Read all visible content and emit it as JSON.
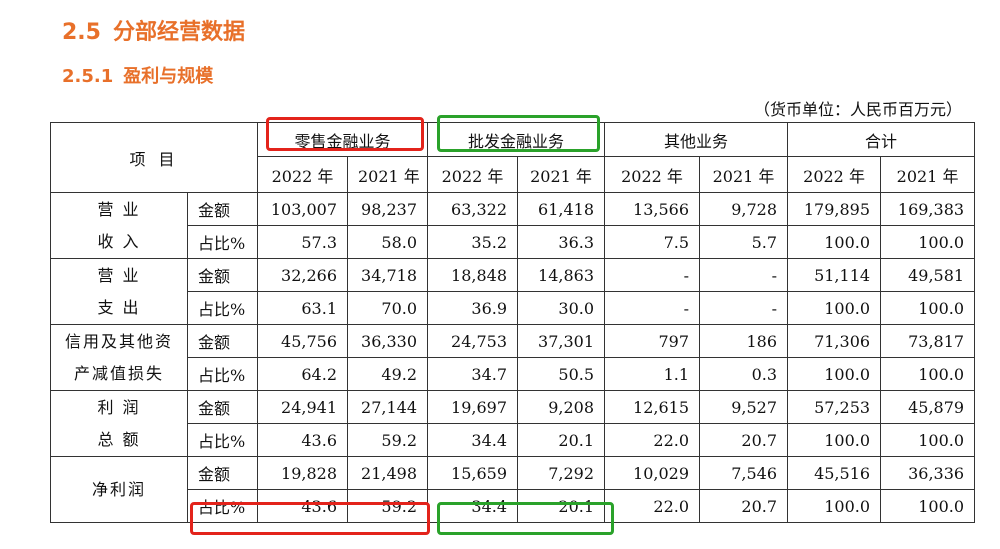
{
  "heading": {
    "num": "2.5",
    "text": "分部经营数据"
  },
  "subheading": {
    "num": "2.5.1",
    "text": "盈利与规模"
  },
  "unit_note": "（货币单位：人民币百万元）",
  "table": {
    "item_header": "项  目",
    "segments": [
      "零售金融业务",
      "批发金融业务",
      "其他业务",
      "合计"
    ],
    "years": [
      "2022 年",
      "2021 年",
      "2022 年",
      "2021 年",
      "2022 年",
      "2021 年",
      "2022 年",
      "2021 年"
    ],
    "rows": [
      {
        "item": [
          "营  业",
          "收  入"
        ],
        "amount": {
          "label": "金额",
          "values": [
            "103,007",
            "98,237",
            "63,322",
            "61,418",
            "13,566",
            "9,728",
            "179,895",
            "169,383"
          ]
        },
        "share": {
          "label": "占比%",
          "values": [
            "57.3",
            "58.0",
            "35.2",
            "36.3",
            "7.5",
            "5.7",
            "100.0",
            "100.0"
          ]
        }
      },
      {
        "item": [
          "营  业",
          "支  出"
        ],
        "amount": {
          "label": "金额",
          "values": [
            "32,266",
            "34,718",
            "18,848",
            "14,863",
            "-",
            "-",
            "51,114",
            "49,581"
          ]
        },
        "share": {
          "label": "占比%",
          "values": [
            "63.1",
            "70.0",
            "36.9",
            "30.0",
            "-",
            "-",
            "100.0",
            "100.0"
          ]
        }
      },
      {
        "item": [
          "信用及其他资",
          "产减值损失"
        ],
        "amount": {
          "label": "金额",
          "values": [
            "45,756",
            "36,330",
            "24,753",
            "37,301",
            "797",
            "186",
            "71,306",
            "73,817"
          ]
        },
        "share": {
          "label": "占比%",
          "values": [
            "64.2",
            "49.2",
            "34.7",
            "50.5",
            "1.1",
            "0.3",
            "100.0",
            "100.0"
          ]
        }
      },
      {
        "item": [
          "利  润",
          "总  额"
        ],
        "amount": {
          "label": "金额",
          "values": [
            "24,941",
            "27,144",
            "19,697",
            "9,208",
            "12,615",
            "9,527",
            "57,253",
            "45,879"
          ]
        },
        "share": {
          "label": "占比%",
          "values": [
            "43.6",
            "59.2",
            "34.4",
            "20.1",
            "22.0",
            "20.7",
            "100.0",
            "100.0"
          ]
        }
      },
      {
        "item": [
          "净利润"
        ],
        "amount": {
          "label": "金额",
          "values": [
            "19,828",
            "21,498",
            "15,659",
            "7,292",
            "10,029",
            "7,546",
            "45,516",
            "36,336"
          ]
        },
        "share": {
          "label": "占比%",
          "values": [
            "43.6",
            "59.2",
            "34.4",
            "20.1",
            "22.0",
            "20.7",
            "100.0",
            "100.0"
          ]
        }
      }
    ]
  },
  "highlight_colors": {
    "retail": "#e3231b",
    "wholesale": "#2aa22a"
  }
}
